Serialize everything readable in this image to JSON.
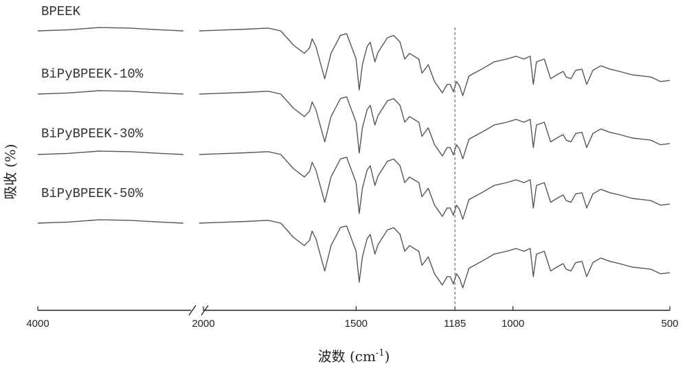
{
  "chart_data": {
    "type": "line",
    "title": "",
    "xlabel": "波数 (cm-1)",
    "xlabel_main": "波数 (cm",
    "xlabel_sup": "-1",
    "xlabel_close": ")",
    "ylabel": "吸收 (%)",
    "x_axis": {
      "reversed": true,
      "broken": true,
      "segments": [
        [
          4000,
          2000
        ],
        [
          2000,
          500
        ]
      ],
      "ticks": [
        4000,
        2000,
        1500,
        1185,
        1000,
        500
      ],
      "tick_labels": [
        "4000",
        "2000",
        "1500",
        "1185",
        "1000",
        "500"
      ]
    },
    "reference_line": {
      "x": 1185,
      "style": "dashed"
    },
    "grid": false,
    "series": [
      {
        "name": "BPEEK",
        "points": [
          [
            4000,
            0.0
          ],
          [
            3600,
            0.02
          ],
          [
            3200,
            0.06
          ],
          [
            2800,
            0.05
          ],
          [
            2400,
            0.02
          ],
          [
            2100,
            0.0
          ],
          [
            2000,
            0.0
          ],
          [
            1950,
            0.01
          ],
          [
            1850,
            0.03
          ],
          [
            1780,
            0.05
          ],
          [
            1740,
            0.0
          ],
          [
            1700,
            -0.25
          ],
          [
            1665,
            -0.4
          ],
          [
            1648,
            -0.3
          ],
          [
            1640,
            -0.14
          ],
          [
            1628,
            -0.28
          ],
          [
            1600,
            -0.85
          ],
          [
            1580,
            -0.4
          ],
          [
            1550,
            -0.08
          ],
          [
            1530,
            -0.05
          ],
          [
            1500,
            -0.5
          ],
          [
            1490,
            -1.05
          ],
          [
            1480,
            -0.6
          ],
          [
            1465,
            -0.28
          ],
          [
            1455,
            -0.2
          ],
          [
            1440,
            -0.55
          ],
          [
            1430,
            -0.38
          ],
          [
            1400,
            -0.12
          ],
          [
            1380,
            -0.08
          ],
          [
            1360,
            -0.2
          ],
          [
            1345,
            -0.5
          ],
          [
            1330,
            -0.4
          ],
          [
            1300,
            -0.5
          ],
          [
            1290,
            -0.75
          ],
          [
            1270,
            -0.6
          ],
          [
            1250,
            -0.9
          ],
          [
            1225,
            -1.1
          ],
          [
            1210,
            -0.95
          ],
          [
            1200,
            -0.95
          ],
          [
            1190,
            -1.08
          ],
          [
            1180,
            -0.9
          ],
          [
            1170,
            -0.98
          ],
          [
            1160,
            -1.15
          ],
          [
            1140,
            -0.8
          ],
          [
            1100,
            -0.68
          ],
          [
            1060,
            -0.55
          ],
          [
            1020,
            -0.5
          ],
          [
            990,
            -0.45
          ],
          [
            965,
            -0.5
          ],
          [
            945,
            -0.45
          ],
          [
            935,
            -0.95
          ],
          [
            925,
            -0.55
          ],
          [
            900,
            -0.5
          ],
          [
            880,
            -0.85
          ],
          [
            860,
            -0.78
          ],
          [
            840,
            -0.72
          ],
          [
            830,
            -0.82
          ],
          [
            815,
            -0.85
          ],
          [
            800,
            -0.7
          ],
          [
            780,
            -0.68
          ],
          [
            765,
            -0.95
          ],
          [
            745,
            -0.7
          ],
          [
            720,
            -0.62
          ],
          [
            690,
            -0.68
          ],
          [
            660,
            -0.72
          ],
          [
            620,
            -0.78
          ],
          [
            590,
            -0.8
          ],
          [
            560,
            -0.82
          ],
          [
            530,
            -0.9
          ],
          [
            500,
            -0.88
          ]
        ]
      },
      {
        "name": "BiPyBPEEK-10%",
        "offset": -1
      },
      {
        "name": "BiPyBPEEK-30%",
        "offset": -2
      },
      {
        "name": "BiPyBPEEK-50%",
        "offset": -3
      }
    ]
  }
}
